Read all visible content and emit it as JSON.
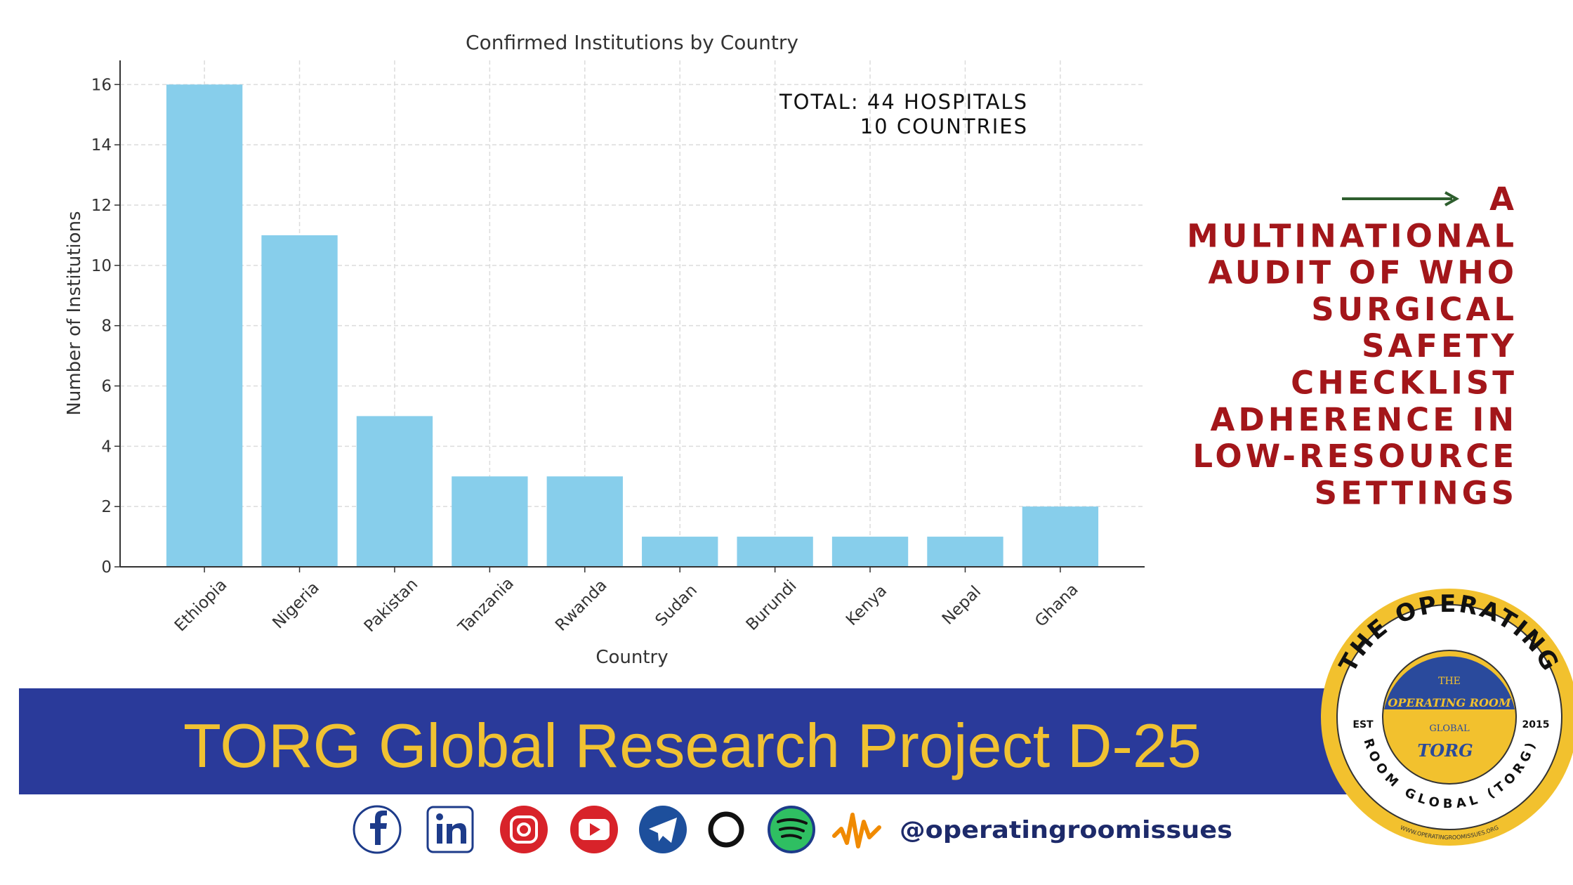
{
  "chart_data": {
    "type": "bar",
    "title": "Confirmed Institutions by Country",
    "x_label": "Country",
    "y_label": "Number of Institutions",
    "categories": [
      "Ethiopia",
      "Nigeria",
      "Pakistan",
      "Tanzania",
      "Rwanda",
      "Sudan",
      "Burundi",
      "Kenya",
      "Nepal",
      "Ghana"
    ],
    "values": [
      16,
      11,
      5,
      3,
      3,
      1,
      1,
      1,
      1,
      2
    ],
    "color": "#87ceeb",
    "ylim": [
      0,
      16.8
    ],
    "yticks": [
      0,
      2,
      4,
      6,
      8,
      10,
      12,
      14,
      16
    ],
    "grid": true,
    "annotation": [
      "TOTAL: 44 HOSPITALS",
      "10 COUNTRIES"
    ]
  },
  "headline": [
    "A",
    "MULTINATIONAL",
    "AUDIT OF WHO",
    "SURGICAL",
    "SAFETY",
    "CHECKLIST",
    "ADHERENCE IN",
    "LOW-RESOURCE",
    "SETTINGS"
  ],
  "banner": "TORG Global Research Project D-25",
  "social_handle": "@operatingroomissues",
  "logo": {
    "top_arc": "THE OPERATING",
    "bottom_arc": "ROOM GLOBAL (TORG)",
    "est": "EST",
    "year": "2015",
    "inner": [
      "THE",
      "OPERATING ROOM",
      "GLOBAL",
      "TORG"
    ],
    "website": "WWW.OPERATINGROOMISSUES.ORG"
  }
}
